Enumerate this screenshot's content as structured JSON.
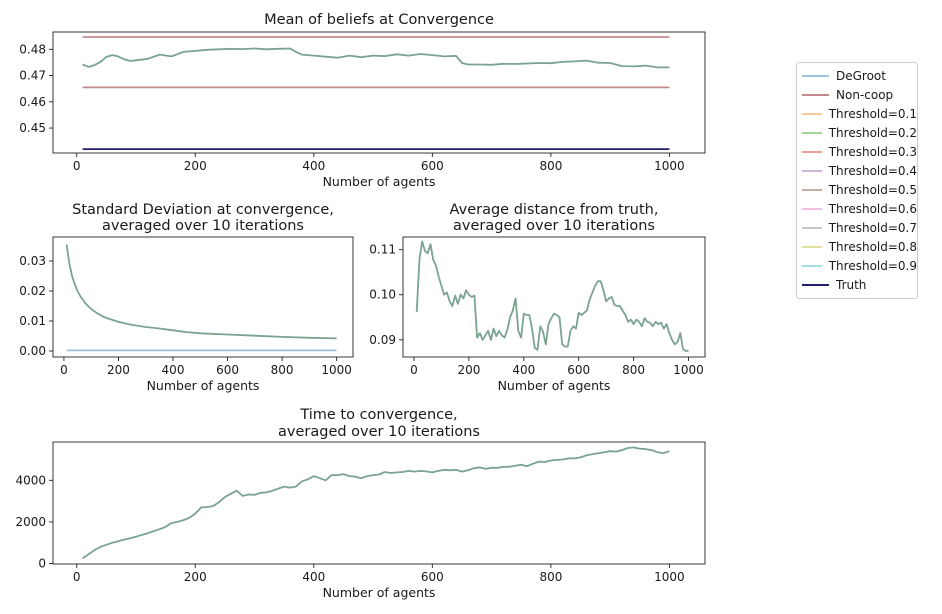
{
  "legend": [
    {
      "label": "DeGroot",
      "color": "#a0c2dc"
    },
    {
      "label": "Non-coop",
      "color": "#c68a8a"
    },
    {
      "label": "Threshold=0.1",
      "color": "#f9c79c"
    },
    {
      "label": "Threshold=0.2",
      "color": "#a3d4a0"
    },
    {
      "label": "Threshold=0.3",
      "color": "#ef9f9f"
    },
    {
      "label": "Threshold=0.4",
      "color": "#cdb7dc"
    },
    {
      "label": "Threshold=0.5",
      "color": "#c7aeaa"
    },
    {
      "label": "Threshold=0.6",
      "color": "#f2bfe0"
    },
    {
      "label": "Threshold=0.7",
      "color": "#c8c8c8"
    },
    {
      "label": "Threshold=0.8",
      "color": "#dfe0a0"
    },
    {
      "label": "Threshold=0.9",
      "color": "#9fe0e8"
    },
    {
      "label": "Truth",
      "color": "#1f1f6e"
    }
  ],
  "chart_data": [
    {
      "id": "mean",
      "type": "line",
      "title": [
        "Mean of beliefs at Convergence"
      ],
      "xlabel": "Number of agents",
      "ylabel": "",
      "xlim": [
        -40,
        1060
      ],
      "ylim": [
        0.4405,
        0.4866
      ],
      "xticks": [
        0,
        200,
        400,
        600,
        800,
        1000
      ],
      "yticks": [
        0.45,
        0.46,
        0.47,
        0.48
      ],
      "ytick_labels": [
        "0.45",
        "0.46",
        "0.47",
        "0.48"
      ],
      "series": [
        {
          "ref": "Non-coop",
          "color": "#c68a8a",
          "x": [
            10,
            1000
          ],
          "y": [
            0.4847,
            0.4847
          ]
        },
        {
          "ref": "Non-coop",
          "color": "#c68a8a",
          "x": [
            10,
            1000
          ],
          "y": [
            0.4655,
            0.4655
          ]
        },
        {
          "ref": "Truth",
          "color": "#1f1f6e",
          "x": [
            10,
            1000
          ],
          "y": [
            0.442,
            0.442
          ]
        },
        {
          "ref": "Threshold",
          "color": "#7aa390",
          "x": [
            10,
            20,
            30,
            40,
            50,
            60,
            70,
            80,
            90,
            100,
            120,
            140,
            160,
            180,
            200,
            220,
            240,
            260,
            280,
            300,
            320,
            340,
            360,
            370,
            380,
            400,
            420,
            440,
            460,
            480,
            500,
            520,
            540,
            560,
            580,
            600,
            620,
            640,
            650,
            660,
            680,
            700,
            720,
            740,
            760,
            780,
            800,
            820,
            840,
            860,
            880,
            900,
            920,
            940,
            960,
            980,
            1000
          ],
          "y": [
            0.4742,
            0.4733,
            0.474,
            0.4752,
            0.4771,
            0.4778,
            0.4773,
            0.4762,
            0.4756,
            0.4758,
            0.4764,
            0.478,
            0.4773,
            0.479,
            0.4794,
            0.4798,
            0.48,
            0.4802,
            0.4801,
            0.4803,
            0.48,
            0.4802,
            0.4803,
            0.479,
            0.478,
            0.4776,
            0.4772,
            0.4768,
            0.4776,
            0.477,
            0.4776,
            0.4774,
            0.4781,
            0.4776,
            0.4782,
            0.4778,
            0.4773,
            0.4775,
            0.4748,
            0.4742,
            0.4742,
            0.4741,
            0.4745,
            0.4744,
            0.4746,
            0.4748,
            0.4747,
            0.4752,
            0.4754,
            0.4757,
            0.4749,
            0.4748,
            0.4736,
            0.4735,
            0.4738,
            0.4731,
            0.4731
          ]
        }
      ]
    },
    {
      "id": "std",
      "type": "line",
      "title": [
        "Standard Deviation at convergence,",
        "averaged over 10 iterations"
      ],
      "xlabel": "Number of agents",
      "ylabel": "",
      "xlim": [
        -40,
        1060
      ],
      "ylim": [
        -0.002,
        0.038
      ],
      "xticks": [
        0,
        200,
        400,
        600,
        800,
        1000
      ],
      "yticks": [
        0.0,
        0.01,
        0.02,
        0.03
      ],
      "ytick_labels": [
        "0.00",
        "0.01",
        "0.02",
        "0.03"
      ],
      "series": [
        {
          "ref": "DeGroot",
          "color": "#a0c2dc",
          "x": [
            10,
            1000
          ],
          "y": [
            0.0002,
            0.0002
          ]
        },
        {
          "ref": "Threshold",
          "color": "#7aa390",
          "x": [
            10,
            20,
            30,
            40,
            50,
            60,
            80,
            100,
            120,
            150,
            200,
            250,
            300,
            350,
            400,
            450,
            500,
            600,
            700,
            800,
            900,
            1000
          ],
          "y": [
            0.0355,
            0.029,
            0.025,
            0.0222,
            0.02,
            0.0183,
            0.0158,
            0.014,
            0.0127,
            0.0112,
            0.0097,
            0.0087,
            0.008,
            0.0075,
            0.0069,
            0.0063,
            0.0059,
            0.0055,
            0.0051,
            0.0047,
            0.0044,
            0.0042
          ]
        }
      ]
    },
    {
      "id": "dist",
      "type": "line",
      "title": [
        "Average distance from truth,",
        "averaged over 10 iterations"
      ],
      "xlabel": "Number of agents",
      "ylabel": "",
      "xlim": [
        -40,
        1060
      ],
      "ylim": [
        0.0862,
        0.1128
      ],
      "xticks": [
        0,
        200,
        400,
        600,
        800,
        1000
      ],
      "yticks": [
        0.09,
        0.1,
        0.11
      ],
      "ytick_labels": [
        "0.09",
        "0.10",
        "0.11"
      ],
      "series": [
        {
          "ref": "Threshold",
          "color": "#7aa390",
          "x": [
            10,
            20,
            30,
            40,
            50,
            60,
            70,
            80,
            90,
            100,
            110,
            120,
            130,
            140,
            150,
            160,
            170,
            180,
            190,
            200,
            210,
            220,
            230,
            240,
            250,
            260,
            270,
            280,
            290,
            300,
            310,
            320,
            330,
            340,
            350,
            360,
            370,
            380,
            390,
            400,
            410,
            420,
            430,
            440,
            450,
            460,
            470,
            480,
            490,
            500,
            510,
            520,
            530,
            540,
            550,
            560,
            570,
            580,
            590,
            600,
            610,
            620,
            630,
            640,
            650,
            660,
            670,
            680,
            690,
            700,
            710,
            720,
            730,
            740,
            750,
            760,
            770,
            780,
            790,
            800,
            810,
            820,
            830,
            840,
            850,
            860,
            870,
            880,
            890,
            900,
            910,
            920,
            930,
            940,
            950,
            960,
            970,
            980,
            990,
            1000
          ],
          "y": [
            0.0962,
            0.108,
            0.1118,
            0.1097,
            0.1092,
            0.1112,
            0.1078,
            0.1065,
            0.104,
            0.102,
            0.1,
            0.1005,
            0.0985,
            0.0975,
            0.0998,
            0.098,
            0.1,
            0.0992,
            0.101,
            0.1,
            0.0995,
            0.0998,
            0.0905,
            0.0915,
            0.09,
            0.091,
            0.092,
            0.09,
            0.0925,
            0.0908,
            0.092,
            0.091,
            0.0905,
            0.0922,
            0.095,
            0.0965,
            0.0992,
            0.092,
            0.0905,
            0.0958,
            0.0955,
            0.0955,
            0.0925,
            0.0882,
            0.0878,
            0.093,
            0.0918,
            0.089,
            0.0935,
            0.0948,
            0.0958,
            0.0955,
            0.095,
            0.089,
            0.0885,
            0.0885,
            0.092,
            0.093,
            0.0925,
            0.096,
            0.0955,
            0.096,
            0.0965,
            0.099,
            0.1005,
            0.102,
            0.103,
            0.103,
            0.101,
            0.0985,
            0.0992,
            0.0995,
            0.0978,
            0.0975,
            0.0975,
            0.0965,
            0.0955,
            0.094,
            0.0945,
            0.0935,
            0.0945,
            0.094,
            0.093,
            0.0948,
            0.094,
            0.0938,
            0.093,
            0.094,
            0.0935,
            0.0938,
            0.0925,
            0.0935,
            0.0915,
            0.09,
            0.089,
            0.0895,
            0.0915,
            0.088,
            0.0875,
            0.0876
          ]
        }
      ]
    },
    {
      "id": "time",
      "type": "line",
      "title": [
        "Time to convergence,",
        "averaged over 10 iterations"
      ],
      "xlabel": "Number of agents",
      "ylabel": "",
      "xlim": [
        -40,
        1060
      ],
      "ylim": [
        -20,
        5840
      ],
      "xticks": [
        0,
        200,
        400,
        600,
        800,
        1000
      ],
      "yticks": [
        0,
        2000,
        4000
      ],
      "ytick_labels": [
        "0",
        "2000",
        "4000"
      ],
      "series": [
        {
          "ref": "Threshold",
          "color": "#7aa390",
          "x": [
            10,
            20,
            30,
            40,
            50,
            60,
            70,
            80,
            90,
            100,
            110,
            120,
            130,
            140,
            150,
            160,
            170,
            180,
            190,
            200,
            210,
            220,
            230,
            240,
            250,
            260,
            270,
            280,
            290,
            300,
            310,
            320,
            330,
            340,
            350,
            360,
            370,
            380,
            390,
            400,
            410,
            420,
            430,
            440,
            450,
            460,
            470,
            480,
            490,
            500,
            510,
            520,
            530,
            540,
            550,
            560,
            570,
            580,
            590,
            600,
            610,
            620,
            630,
            640,
            650,
            660,
            670,
            680,
            690,
            700,
            710,
            720,
            730,
            740,
            750,
            760,
            770,
            780,
            790,
            800,
            810,
            820,
            830,
            840,
            850,
            860,
            870,
            880,
            890,
            900,
            910,
            920,
            930,
            940,
            950,
            960,
            970,
            980,
            990,
            1000
          ],
          "y": [
            250,
            450,
            650,
            800,
            900,
            1000,
            1070,
            1150,
            1220,
            1290,
            1380,
            1460,
            1560,
            1650,
            1760,
            1950,
            2000,
            2090,
            2200,
            2400,
            2700,
            2720,
            2760,
            2950,
            3200,
            3350,
            3500,
            3250,
            3320,
            3300,
            3400,
            3420,
            3500,
            3600,
            3700,
            3650,
            3700,
            3950,
            4050,
            4200,
            4100,
            4000,
            4250,
            4250,
            4300,
            4200,
            4180,
            4100,
            4200,
            4250,
            4280,
            4400,
            4350,
            4380,
            4400,
            4450,
            4420,
            4450,
            4430,
            4380,
            4450,
            4500,
            4480,
            4500,
            4420,
            4480,
            4580,
            4620,
            4550,
            4600,
            4600,
            4650,
            4650,
            4700,
            4750,
            4680,
            4800,
            4900,
            4880,
            4950,
            4980,
            5000,
            5050,
            5050,
            5100,
            5200,
            5250,
            5300,
            5350,
            5400,
            5380,
            5450,
            5550,
            5580,
            5520,
            5500,
            5450,
            5350,
            5300,
            5400
          ]
        }
      ]
    }
  ]
}
